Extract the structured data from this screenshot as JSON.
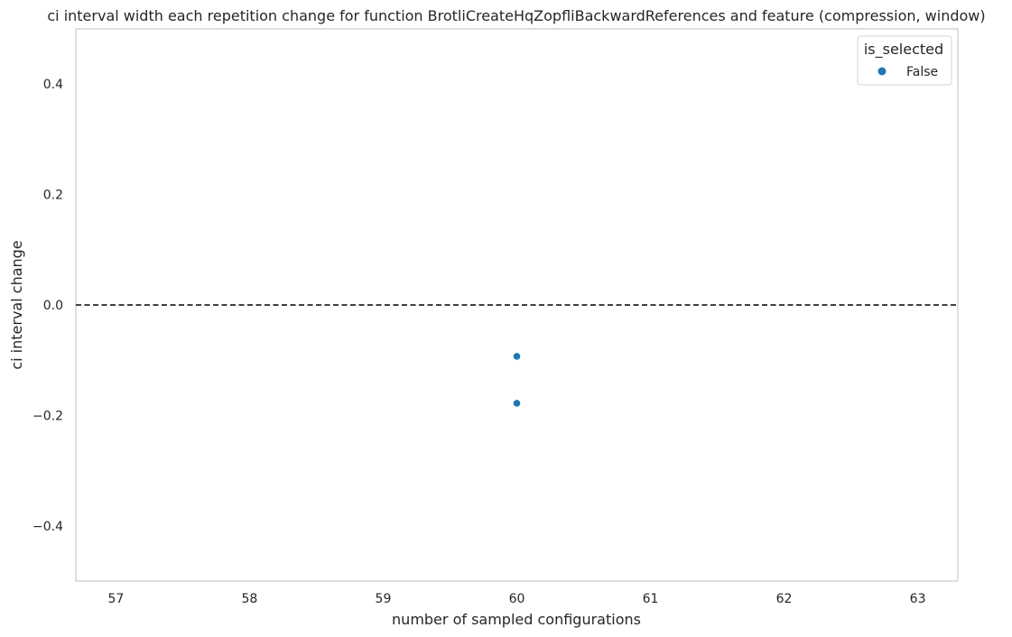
{
  "chart_data": {
    "type": "scatter",
    "title": "ci interval width each repetition change for function BrotliCreateHqZopfliBackwardReferences and feature (compression, window)",
    "xlabel": "number of sampled configurations",
    "ylabel": "ci interval change",
    "xlim": [
      56.7,
      63.3
    ],
    "ylim": [
      -0.5,
      0.5
    ],
    "x_ticks": [
      57,
      58,
      59,
      60,
      61,
      62,
      63
    ],
    "y_ticks": [
      0.4,
      0.2,
      0.0,
      -0.2,
      -0.4
    ],
    "y_tick_labels": [
      "0.4",
      "0.2",
      "0.0",
      "−0.2",
      "−0.4"
    ],
    "grid": false,
    "reference_line": {
      "y": 0.0,
      "style": "dashed",
      "color": "#000000"
    },
    "legend": {
      "title": "is_selected",
      "placement": "top-right",
      "entries": [
        {
          "label": "False",
          "color": "#1f77b4"
        }
      ]
    },
    "series": [
      {
        "name": "False",
        "color": "#1f77b4",
        "points": [
          {
            "x": 60,
            "y": -0.093
          },
          {
            "x": 60,
            "y": -0.178
          }
        ]
      }
    ]
  }
}
